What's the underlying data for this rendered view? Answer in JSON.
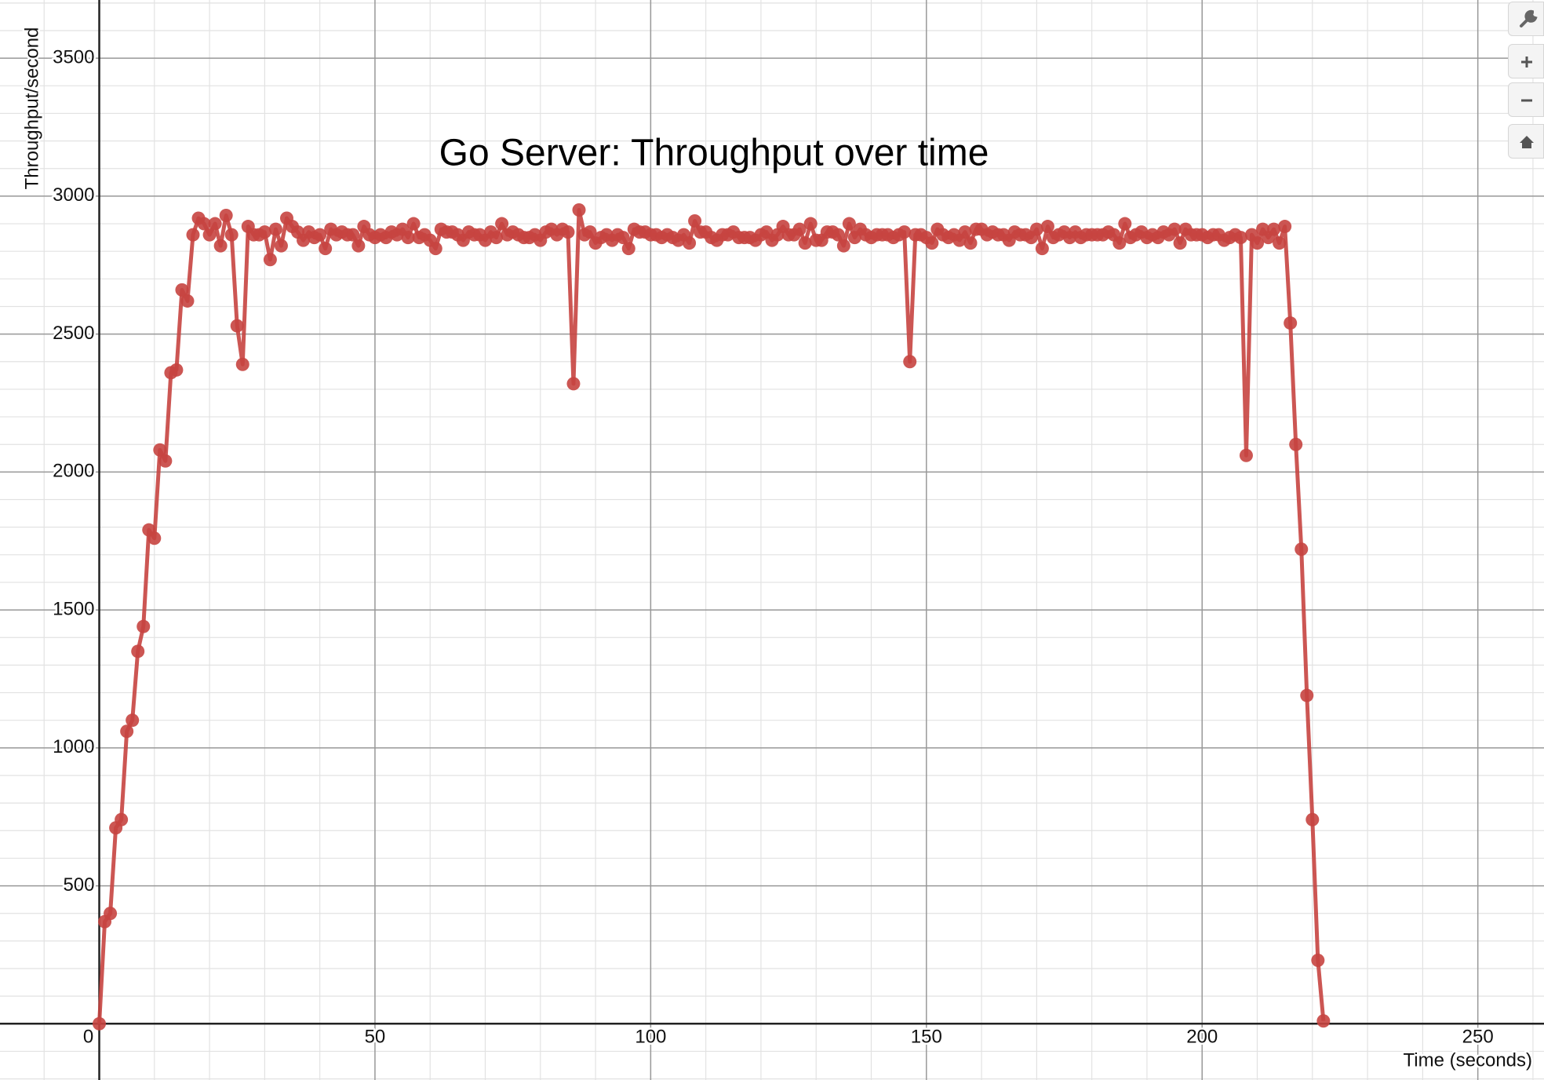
{
  "chart_data": {
    "type": "line",
    "title": "Go Server: Throughput over time",
    "xlabel": "Time (seconds)",
    "ylabel": "Throughput/second",
    "color": "#c74440",
    "grid": true,
    "markers": true,
    "xlim": [
      -18,
      262
    ],
    "ylim": [
      -204,
      3711
    ],
    "xticks": [
      0,
      50,
      100,
      150,
      200,
      250
    ],
    "yticks": [
      500,
      1000,
      1500,
      2000,
      2500,
      3000,
      3500
    ],
    "x": [
      0,
      1,
      2,
      3,
      4,
      5,
      6,
      7,
      8,
      9,
      10,
      11,
      12,
      13,
      14,
      15,
      16,
      17,
      18,
      19,
      20,
      21,
      22,
      23,
      24,
      25,
      26,
      27,
      28,
      29,
      30,
      31,
      32,
      33,
      34,
      35,
      36,
      37,
      38,
      39,
      40,
      41,
      42,
      43,
      44,
      45,
      46,
      47,
      48,
      49,
      50,
      51,
      52,
      53,
      54,
      55,
      56,
      57,
      58,
      59,
      60,
      61,
      62,
      63,
      64,
      65,
      66,
      67,
      68,
      69,
      70,
      71,
      72,
      73,
      74,
      75,
      76,
      77,
      78,
      79,
      80,
      81,
      82,
      83,
      84,
      85,
      86,
      87,
      88,
      89,
      90,
      91,
      92,
      93,
      94,
      95,
      96,
      97,
      98,
      99,
      100,
      101,
      102,
      103,
      104,
      105,
      106,
      107,
      108,
      109,
      110,
      111,
      112,
      113,
      114,
      115,
      116,
      117,
      118,
      119,
      120,
      121,
      122,
      123,
      124,
      125,
      126,
      127,
      128,
      129,
      130,
      131,
      132,
      133,
      134,
      135,
      136,
      137,
      138,
      139,
      140,
      141,
      142,
      143,
      144,
      145,
      146,
      147,
      148,
      149,
      150,
      151,
      152,
      153,
      154,
      155,
      156,
      157,
      158,
      159,
      160,
      161,
      162,
      163,
      164,
      165,
      166,
      167,
      168,
      169,
      170,
      171,
      172,
      173,
      174,
      175,
      176,
      177,
      178,
      179,
      180,
      181,
      182,
      183,
      184,
      185,
      186,
      187,
      188,
      189,
      190,
      191,
      192,
      193,
      194,
      195,
      196,
      197,
      198,
      199,
      200,
      201,
      202,
      203,
      204,
      205,
      206,
      207,
      208,
      209,
      210,
      211,
      212,
      213,
      214,
      215,
      216,
      217,
      218,
      219,
      220,
      221,
      222
    ],
    "values": [
      0,
      370,
      400,
      710,
      740,
      1060,
      1100,
      1350,
      1440,
      1790,
      1760,
      2080,
      2040,
      2360,
      2370,
      2660,
      2620,
      2860,
      2920,
      2900,
      2860,
      2900,
      2820,
      2930,
      2860,
      2530,
      2390,
      2890,
      2860,
      2860,
      2870,
      2770,
      2880,
      2820,
      2920,
      2890,
      2870,
      2840,
      2870,
      2850,
      2860,
      2810,
      2880,
      2860,
      2870,
      2860,
      2860,
      2820,
      2890,
      2860,
      2850,
      2860,
      2850,
      2870,
      2860,
      2880,
      2850,
      2900,
      2850,
      2860,
      2840,
      2810,
      2880,
      2870,
      2870,
      2860,
      2840,
      2870,
      2860,
      2860,
      2840,
      2870,
      2850,
      2900,
      2860,
      2870,
      2860,
      2850,
      2850,
      2860,
      2840,
      2870,
      2880,
      2860,
      2880,
      2870,
      2320,
      2950,
      2860,
      2870,
      2830,
      2850,
      2860,
      2840,
      2860,
      2850,
      2810,
      2880,
      2870,
      2870,
      2860,
      2860,
      2850,
      2860,
      2850,
      2840,
      2860,
      2830,
      2910,
      2870,
      2870,
      2850,
      2840,
      2860,
      2860,
      2870,
      2850,
      2850,
      2850,
      2840,
      2860,
      2870,
      2840,
      2860,
      2890,
      2860,
      2860,
      2880,
      2830,
      2900,
      2840,
      2840,
      2870,
      2870,
      2860,
      2820,
      2900,
      2850,
      2880,
      2860,
      2850,
      2860,
      2860,
      2860,
      2850,
      2860,
      2870,
      2400,
      2860,
      2860,
      2850,
      2830,
      2880,
      2860,
      2850,
      2860,
      2840,
      2870,
      2830,
      2880,
      2880,
      2860,
      2870,
      2860,
      2860,
      2840,
      2870,
      2860,
      2860,
      2850,
      2880,
      2810,
      2890,
      2850,
      2860,
      2870,
      2850,
      2870,
      2850,
      2860,
      2860,
      2860,
      2860,
      2870,
      2860,
      2830,
      2900,
      2850,
      2860,
      2870,
      2850,
      2860,
      2850,
      2870,
      2860,
      2880,
      2830,
      2880,
      2860,
      2860,
      2860,
      2850,
      2860,
      2860,
      2840,
      2850,
      2860,
      2850,
      2060,
      2860,
      2830,
      2880,
      2850,
      2880,
      2830,
      2890,
      2540,
      2100,
      1720,
      1190,
      740,
      230,
      10
    ]
  }
}
